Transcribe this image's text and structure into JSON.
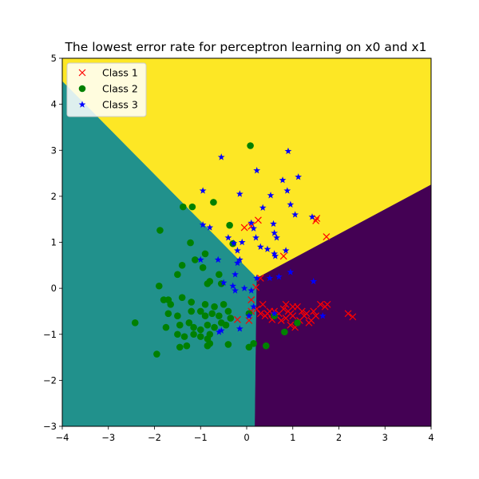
{
  "chart_data": {
    "type": "scatter",
    "title": "The lowest error rate for perceptron learning on x0 and x1",
    "xlabel": "",
    "ylabel": "",
    "xlim": [
      -4,
      4
    ],
    "ylim": [
      -3,
      5
    ],
    "xticks": [
      "−4",
      "−3",
      "−2",
      "−1",
      "0",
      "1",
      "2",
      "3",
      "4"
    ],
    "xtick_values": [
      -4,
      -3,
      -2,
      -1,
      0,
      1,
      2,
      3,
      4
    ],
    "yticks": [
      "−3",
      "−2",
      "−1",
      "0",
      "1",
      "2",
      "3",
      "4",
      "5"
    ],
    "ytick_values": [
      -3,
      -2,
      -1,
      0,
      1,
      2,
      3,
      4,
      5
    ],
    "grid": false,
    "legend_position": "upper-left",
    "decision_regions": [
      {
        "color": "#fde725",
        "polygon": [
          [
            -4,
            4.5
          ],
          [
            -4,
            5
          ],
          [
            4,
            5
          ],
          [
            4,
            2.25
          ],
          [
            0.22,
            0.22
          ]
        ]
      },
      {
        "color": "#21918c",
        "polygon": [
          [
            -4,
            -3
          ],
          [
            -4,
            4.5
          ],
          [
            0.22,
            0.22
          ],
          [
            0.18,
            -3
          ]
        ]
      },
      {
        "color": "#440154",
        "polygon": [
          [
            0.18,
            -3
          ],
          [
            0.22,
            0.22
          ],
          [
            4,
            2.25
          ],
          [
            4,
            -3
          ]
        ]
      }
    ],
    "series": [
      {
        "name": "Class 1",
        "marker": "x",
        "color": "#ff0000",
        "points": [
          [
            1.52,
            1.52
          ],
          [
            1.5,
            1.47
          ],
          [
            1.73,
            1.12
          ],
          [
            0.25,
            1.48
          ],
          [
            -0.05,
            1.32
          ],
          [
            0.1,
            1.35
          ],
          [
            0.8,
            0.7
          ],
          [
            0.3,
            0.22
          ],
          [
            0.2,
            0.02
          ],
          [
            0.1,
            -0.25
          ],
          [
            0.1,
            -0.5
          ],
          [
            0.05,
            -0.7
          ],
          [
            -0.2,
            -0.68
          ],
          [
            0.3,
            -0.55
          ],
          [
            0.4,
            -0.6
          ],
          [
            0.35,
            -0.35
          ],
          [
            0.5,
            -0.5
          ],
          [
            0.6,
            -0.5
          ],
          [
            0.7,
            -0.55
          ],
          [
            0.8,
            -0.45
          ],
          [
            0.9,
            -0.5
          ],
          [
            1.0,
            -0.4
          ],
          [
            1.1,
            -0.4
          ],
          [
            1.2,
            -0.5
          ],
          [
            1.3,
            -0.55
          ],
          [
            1.4,
            -0.7
          ],
          [
            1.5,
            -0.6
          ],
          [
            1.6,
            -0.35
          ],
          [
            1.7,
            -0.4
          ],
          [
            1.75,
            -0.35
          ],
          [
            0.85,
            -0.65
          ],
          [
            0.95,
            -0.8
          ],
          [
            1.05,
            -0.85
          ],
          [
            1.35,
            -0.75
          ],
          [
            0.65,
            -0.6
          ],
          [
            2.2,
            -0.55
          ],
          [
            2.3,
            -0.62
          ],
          [
            0.22,
            -0.45
          ],
          [
            0.45,
            -0.55
          ],
          [
            0.55,
            -0.68
          ],
          [
            0.75,
            -0.7
          ],
          [
            1.0,
            -0.6
          ],
          [
            1.15,
            -0.7
          ],
          [
            1.25,
            -0.6
          ],
          [
            0.85,
            -0.35
          ],
          [
            1.45,
            -0.5
          ],
          [
            0.95,
            -0.55
          ]
        ]
      },
      {
        "name": "Class 2",
        "marker": "o",
        "color": "#008000",
        "points": [
          [
            0.08,
            3.1
          ],
          [
            -0.72,
            1.87
          ],
          [
            -1.38,
            1.77
          ],
          [
            -1.18,
            1.77
          ],
          [
            -1.88,
            1.26
          ],
          [
            -0.37,
            1.37
          ],
          [
            -1.22,
            0.99
          ],
          [
            -0.9,
            0.75
          ],
          [
            -0.3,
            0.97
          ],
          [
            -1.4,
            0.5
          ],
          [
            -1.5,
            0.3
          ],
          [
            -1.12,
            0.62
          ],
          [
            -0.95,
            0.45
          ],
          [
            -0.8,
            0.15
          ],
          [
            -0.6,
            0.3
          ],
          [
            -0.55,
            0.1
          ],
          [
            -1.9,
            0.05
          ],
          [
            -0.85,
            0.1
          ],
          [
            -1.8,
            -0.25
          ],
          [
            -1.7,
            -0.25
          ],
          [
            -1.65,
            -0.35
          ],
          [
            -1.4,
            -0.2
          ],
          [
            -1.2,
            -0.3
          ],
          [
            -0.9,
            -0.35
          ],
          [
            -0.7,
            -0.4
          ],
          [
            -0.5,
            -0.35
          ],
          [
            -1.7,
            -0.55
          ],
          [
            -1.5,
            -0.6
          ],
          [
            -1.2,
            -0.5
          ],
          [
            -1.0,
            -0.5
          ],
          [
            -0.9,
            -0.6
          ],
          [
            -0.75,
            -0.55
          ],
          [
            -0.6,
            -0.6
          ],
          [
            -0.4,
            -0.5
          ],
          [
            -0.35,
            -0.65
          ],
          [
            -1.75,
            -0.85
          ],
          [
            -1.45,
            -0.8
          ],
          [
            -1.25,
            -0.75
          ],
          [
            -1.15,
            -0.85
          ],
          [
            -1.0,
            -0.9
          ],
          [
            -0.85,
            -0.8
          ],
          [
            -0.7,
            -0.85
          ],
          [
            -0.55,
            -0.75
          ],
          [
            -0.45,
            -0.8
          ],
          [
            -2.42,
            -0.75
          ],
          [
            -1.5,
            -1.0
          ],
          [
            -1.35,
            -1.05
          ],
          [
            -1.15,
            -1.0
          ],
          [
            -1.0,
            -1.05
          ],
          [
            -0.8,
            -1.0
          ],
          [
            -0.85,
            -1.1
          ],
          [
            -1.3,
            -1.25
          ],
          [
            -1.45,
            -1.28
          ],
          [
            -0.8,
            -1.2
          ],
          [
            -0.4,
            -1.22
          ],
          [
            0.05,
            -1.28
          ],
          [
            0.15,
            -1.2
          ],
          [
            0.42,
            -1.25
          ],
          [
            0.82,
            -0.95
          ],
          [
            -1.95,
            -1.43
          ],
          [
            -0.85,
            -1.25
          ],
          [
            0.6,
            -0.6
          ],
          [
            1.1,
            -0.75
          ],
          [
            0.05,
            -0.55
          ]
        ]
      },
      {
        "name": "Class 3",
        "marker": "*",
        "color": "#0000ff",
        "points": [
          [
            0.9,
            2.98
          ],
          [
            -0.55,
            2.85
          ],
          [
            0.22,
            2.56
          ],
          [
            1.12,
            2.42
          ],
          [
            0.78,
            2.35
          ],
          [
            0.52,
            2.02
          ],
          [
            -0.95,
            2.12
          ],
          [
            -0.15,
            2.05
          ],
          [
            0.88,
            2.12
          ],
          [
            0.95,
            1.82
          ],
          [
            0.35,
            1.75
          ],
          [
            1.05,
            1.6
          ],
          [
            1.42,
            1.55
          ],
          [
            0.58,
            1.4
          ],
          [
            0.1,
            1.42
          ],
          [
            -0.95,
            1.38
          ],
          [
            -0.8,
            1.32
          ],
          [
            0.15,
            1.3
          ],
          [
            0.6,
            1.2
          ],
          [
            0.65,
            1.1
          ],
          [
            -0.4,
            1.1
          ],
          [
            -0.28,
            0.98
          ],
          [
            0.2,
            1.1
          ],
          [
            0.3,
            0.9
          ],
          [
            0.45,
            0.85
          ],
          [
            -0.2,
            0.82
          ],
          [
            0.6,
            0.75
          ],
          [
            0.85,
            0.82
          ],
          [
            -1.0,
            0.62
          ],
          [
            -0.62,
            0.62
          ],
          [
            -0.2,
            0.55
          ],
          [
            -0.15,
            0.62
          ],
          [
            0.62,
            0.7
          ],
          [
            -0.25,
            0.3
          ],
          [
            0.22,
            0.22
          ],
          [
            0.5,
            0.22
          ],
          [
            0.7,
            0.25
          ],
          [
            0.95,
            0.35
          ],
          [
            1.45,
            0.15
          ],
          [
            -0.5,
            0.12
          ],
          [
            -0.3,
            0.05
          ],
          [
            -0.25,
            -0.05
          ],
          [
            0.15,
            -0.4
          ],
          [
            0.05,
            -0.6
          ],
          [
            -0.15,
            -0.88
          ],
          [
            -0.55,
            -0.92
          ],
          [
            -0.6,
            -0.95
          ],
          [
            1.65,
            -0.6
          ],
          [
            0.6,
            -0.55
          ],
          [
            0.1,
            -0.05
          ],
          [
            -0.05,
            0.0
          ],
          [
            -0.1,
            1.0
          ]
        ]
      }
    ]
  }
}
